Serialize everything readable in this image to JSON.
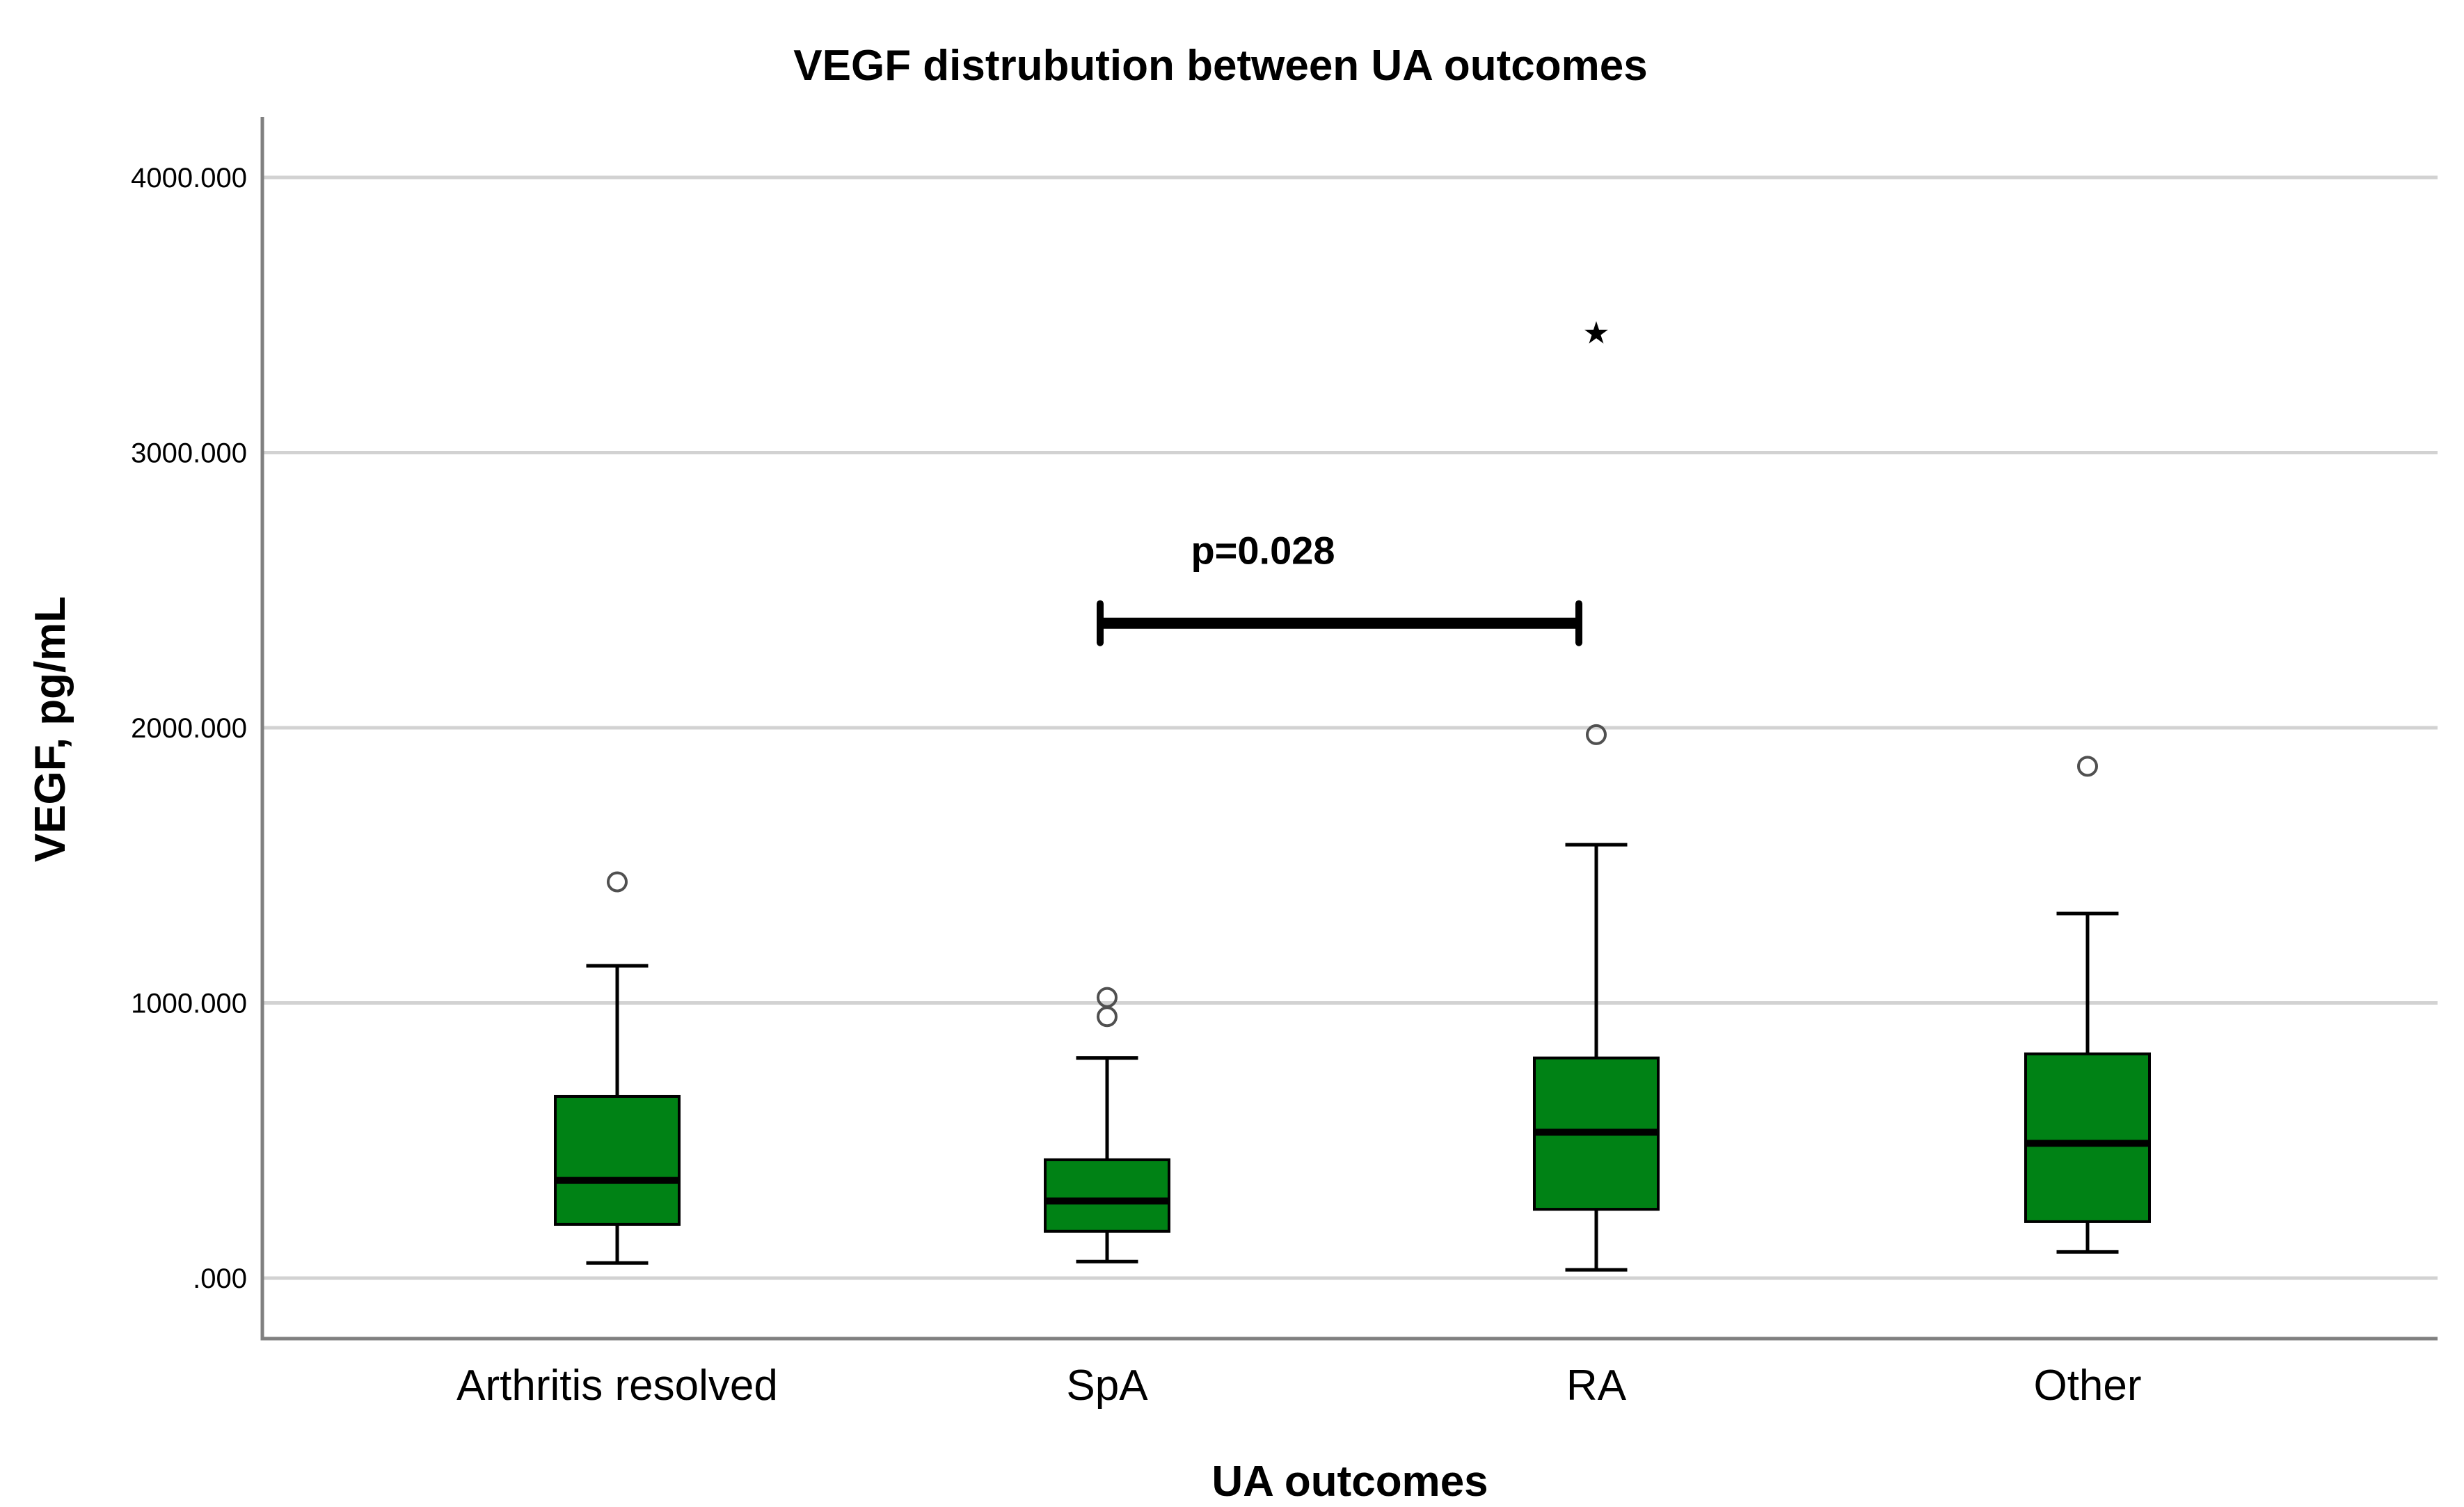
{
  "chart_data": {
    "type": "box",
    "title": "VEGF distrubution between UA outcomes",
    "xlabel": "UA outcomes",
    "ylabel": "VEGF, pg/mL",
    "ylim": [
      -220,
      4220
    ],
    "yticks": [
      {
        "value": 0,
        "label": ".000"
      },
      {
        "value": 1000,
        "label": "1000.000"
      },
      {
        "value": 2000,
        "label": "2000.000"
      },
      {
        "value": 3000,
        "label": "3000.000"
      },
      {
        "value": 4000,
        "label": "4000.000"
      }
    ],
    "grid": true,
    "box_color": "#008215",
    "categories": [
      "Arthritis resolved",
      "SpA",
      "RA",
      "Other"
    ],
    "boxes": [
      {
        "category": "Arthritis resolved",
        "whisker_low": 55,
        "q1": 195,
        "median": 355,
        "q3": 660,
        "whisker_high": 1135,
        "outliers": [
          1440
        ],
        "extremes": []
      },
      {
        "category": "SpA",
        "whisker_low": 60,
        "q1": 170,
        "median": 280,
        "q3": 430,
        "whisker_high": 800,
        "outliers": [
          950,
          1020
        ],
        "extremes": []
      },
      {
        "category": "RA",
        "whisker_low": 30,
        "q1": 250,
        "median": 530,
        "q3": 800,
        "whisker_high": 1575,
        "outliers": [
          1975
        ],
        "extremes": [
          3440
        ]
      },
      {
        "category": "Other",
        "whisker_low": 95,
        "q1": 205,
        "median": 490,
        "q3": 815,
        "whisker_high": 1325,
        "outliers": [
          1860
        ],
        "extremes": []
      }
    ],
    "annotation": {
      "text": "p=0.028",
      "from": "SpA",
      "to": "RA",
      "value": 2380
    }
  }
}
